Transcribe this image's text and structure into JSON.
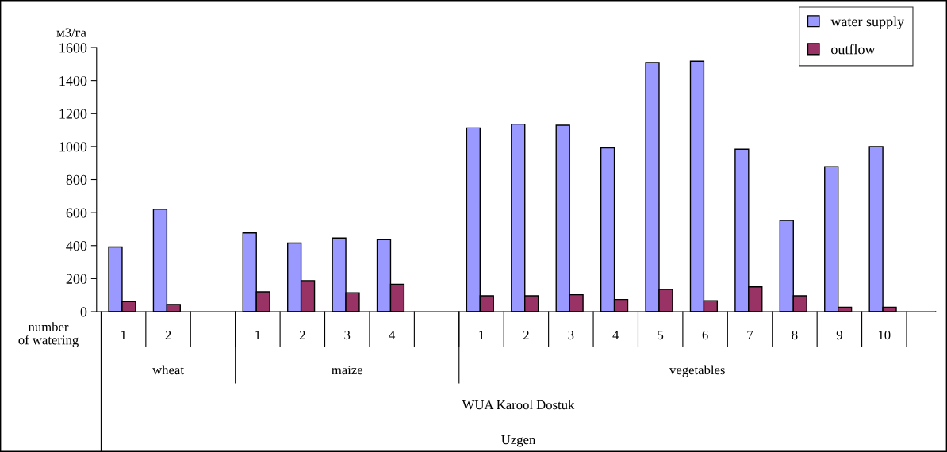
{
  "chart_data": {
    "type": "bar",
    "ylabel": "м3/га",
    "categories": [
      "1",
      "2",
      null,
      "1",
      "2",
      "3",
      "4",
      null,
      "1",
      "2",
      "3",
      "4",
      "5",
      "6",
      "7",
      "8",
      "9",
      "10",
      null
    ],
    "series": [
      {
        "name": "water supply",
        "color": "#9999ff",
        "values": [
          392,
          621,
          null,
          477,
          416,
          446,
          436,
          null,
          1113,
          1136,
          1129,
          992,
          1509,
          1517,
          984,
          552,
          879,
          1000,
          null
        ]
      },
      {
        "name": "outflow",
        "color": "#993366",
        "values": [
          61,
          44,
          null,
          120,
          188,
          114,
          166,
          null,
          96,
          96,
          103,
          74,
          134,
          66,
          150,
          96,
          27,
          27,
          null
        ]
      }
    ],
    "ylim": [
      0,
      1600
    ],
    "yticks": [
      0,
      200,
      400,
      600,
      800,
      1000,
      1200,
      1400,
      1600
    ],
    "grid": false,
    "legend": "top right",
    "annotations": [
      "number\nof watering",
      "wheat",
      "maize",
      "vegetables",
      "WUA Karool Dostuk",
      "Uzgen"
    ]
  }
}
